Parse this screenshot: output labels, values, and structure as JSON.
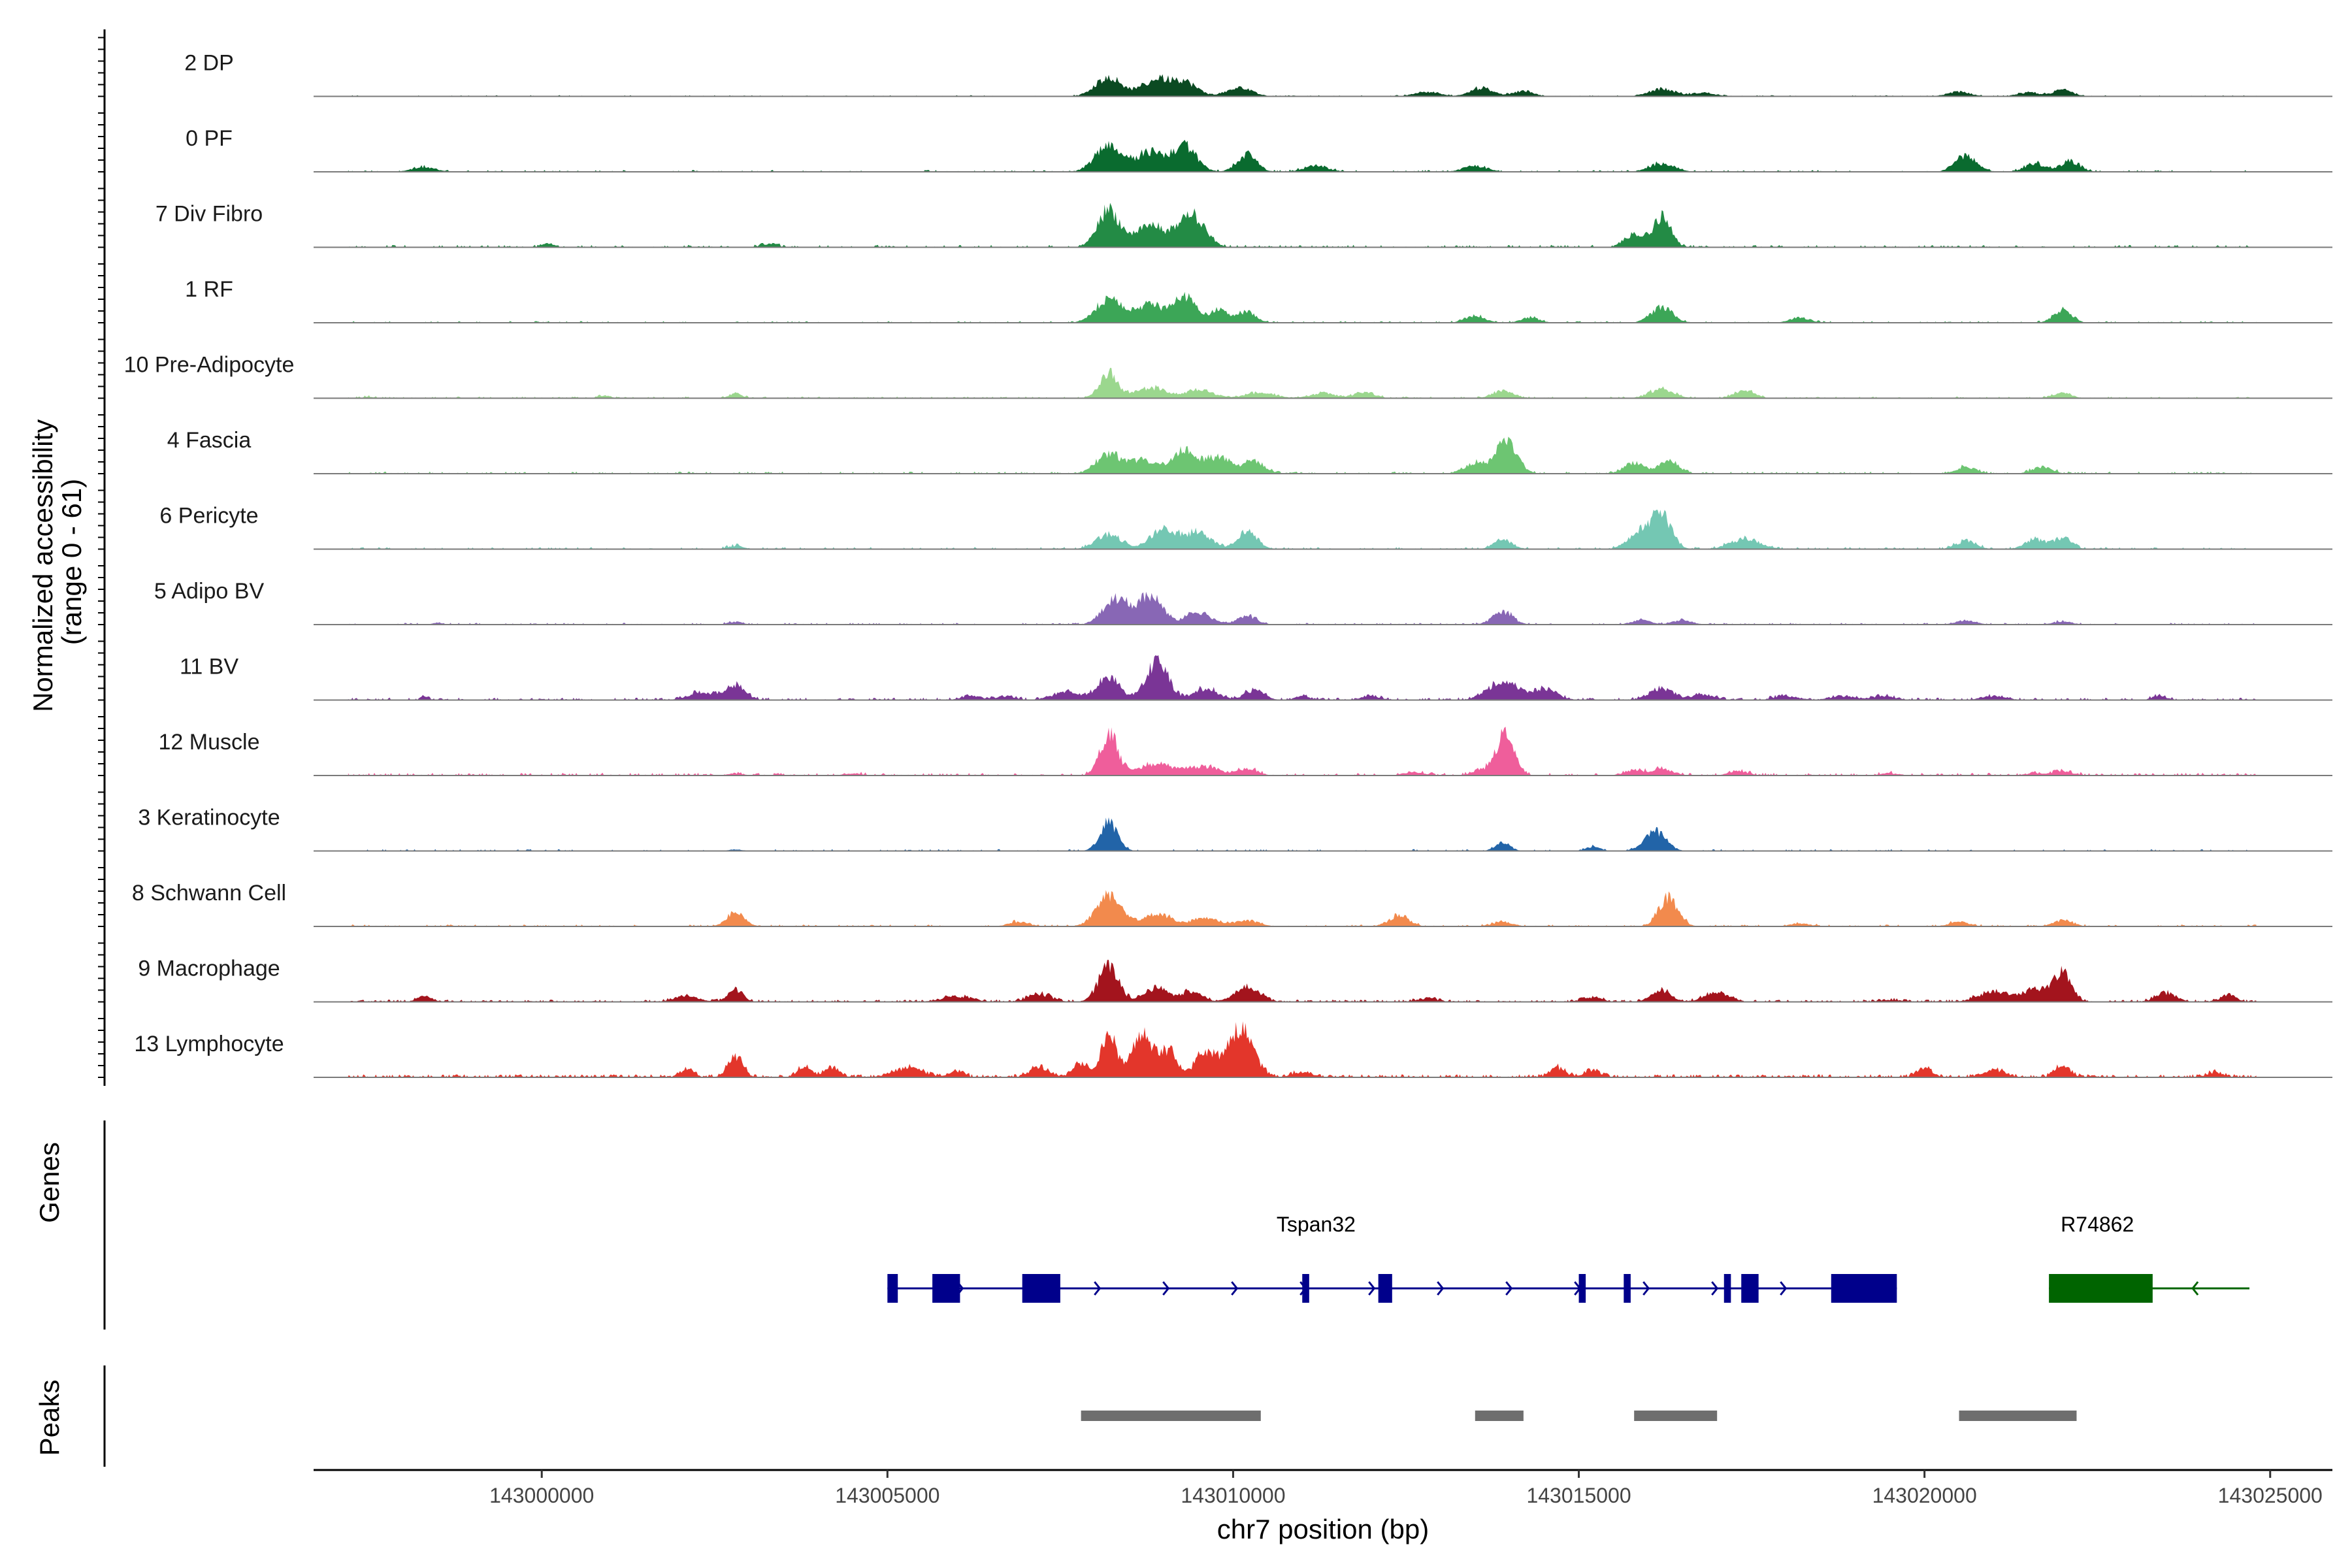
{
  "chart_data": {
    "type": "area",
    "title": "",
    "xlabel": "chr7 position (bp)",
    "ylabel": [
      "Normalized accessibility",
      "(range 0 - 61)"
    ],
    "xlim": [
      142996700,
      143025900
    ],
    "ylim": [
      0,
      61
    ],
    "x_ticks": [
      143000000,
      143005000,
      143010000,
      143015000,
      143020000,
      143025000
    ],
    "x_tick_labels": [
      "143000000",
      "143005000",
      "143010000",
      "143015000",
      "143020000",
      "143025000"
    ],
    "tracks": [
      {
        "name": "2 DP",
        "color": "#0b4a22",
        "scale": 0.4,
        "density": 0.28,
        "peaks": [
          [
            143008200,
            1.0,
            260
          ],
          [
            143008900,
            0.85,
            300
          ],
          [
            143009300,
            0.7,
            260
          ],
          [
            143010100,
            0.45,
            250
          ],
          [
            143012800,
            0.25,
            250
          ],
          [
            143013600,
            0.45,
            230
          ],
          [
            143014200,
            0.3,
            200
          ],
          [
            143016200,
            0.4,
            260
          ],
          [
            143016800,
            0.2,
            220
          ],
          [
            143020500,
            0.25,
            230
          ],
          [
            143021500,
            0.2,
            220
          ],
          [
            143022000,
            0.35,
            200
          ]
        ]
      },
      {
        "name": "0 PF",
        "color": "#0a6b2f",
        "scale": 0.6,
        "density": 0.28,
        "peaks": [
          [
            142998300,
            0.15,
            250
          ],
          [
            143008200,
            1.0,
            260
          ],
          [
            143008800,
            0.7,
            280
          ],
          [
            143009300,
            0.9,
            240
          ],
          [
            143010200,
            0.6,
            200
          ],
          [
            143011200,
            0.2,
            250
          ],
          [
            143013500,
            0.2,
            250
          ],
          [
            143016200,
            0.3,
            250
          ],
          [
            143020600,
            0.55,
            220
          ],
          [
            143021600,
            0.3,
            200
          ],
          [
            143022100,
            0.35,
            200
          ]
        ]
      },
      {
        "name": "7 Div Fibro",
        "color": "#238b45",
        "scale": 0.8,
        "density": 0.3,
        "peaks": [
          [
            143000100,
            0.1,
            120
          ],
          [
            143008200,
            1.0,
            220
          ],
          [
            143008800,
            0.6,
            300
          ],
          [
            143009400,
            0.85,
            260
          ],
          [
            143016200,
            0.8,
            180
          ],
          [
            143015800,
            0.35,
            200
          ],
          [
            143003300,
            0.08,
            150
          ]
        ]
      },
      {
        "name": "1 RF",
        "color": "#3ca657",
        "scale": 0.55,
        "density": 0.25,
        "peaks": [
          [
            143008200,
            0.95,
            260
          ],
          [
            143008800,
            0.7,
            280
          ],
          [
            143009300,
            1.0,
            220
          ],
          [
            143009800,
            0.5,
            200
          ],
          [
            143010200,
            0.4,
            180
          ],
          [
            143013500,
            0.25,
            200
          ],
          [
            143014300,
            0.2,
            180
          ],
          [
            143016200,
            0.6,
            220
          ],
          [
            143018200,
            0.2,
            200
          ],
          [
            143022000,
            0.5,
            180
          ]
        ]
      },
      {
        "name": "10 Pre-Adipocyte",
        "color": "#9bd78e",
        "scale": 0.55,
        "density": 0.35,
        "peaks": [
          [
            142997500,
            0.05,
            120
          ],
          [
            143000900,
            0.1,
            120
          ],
          [
            143002800,
            0.2,
            120
          ],
          [
            143008200,
            1.0,
            180
          ],
          [
            143008800,
            0.4,
            300
          ],
          [
            143009500,
            0.3,
            300
          ],
          [
            143010400,
            0.2,
            300
          ],
          [
            143011300,
            0.2,
            250
          ],
          [
            143011900,
            0.25,
            200
          ],
          [
            143013900,
            0.3,
            200
          ],
          [
            143016200,
            0.35,
            250
          ],
          [
            143017400,
            0.3,
            200
          ],
          [
            143022000,
            0.2,
            180
          ]
        ]
      },
      {
        "name": "4 Fascia",
        "color": "#6dc572",
        "scale": 0.7,
        "density": 0.3,
        "peaks": [
          [
            143008200,
            0.6,
            250
          ],
          [
            143008700,
            0.4,
            280
          ],
          [
            143009300,
            0.7,
            260
          ],
          [
            143009800,
            0.5,
            250
          ],
          [
            143010300,
            0.4,
            200
          ],
          [
            143013500,
            0.3,
            220
          ],
          [
            143013950,
            1.0,
            220
          ],
          [
            143015800,
            0.35,
            200
          ],
          [
            143016300,
            0.4,
            200
          ],
          [
            143020600,
            0.2,
            200
          ],
          [
            143021700,
            0.2,
            200
          ]
        ]
      },
      {
        "name": "6 Pericyte",
        "color": "#74c7b3",
        "scale": 0.7,
        "density": 0.3,
        "peaks": [
          [
            143002800,
            0.1,
            150
          ],
          [
            143008200,
            0.45,
            250
          ],
          [
            143009000,
            0.6,
            280
          ],
          [
            143009500,
            0.5,
            260
          ],
          [
            143010200,
            0.55,
            200
          ],
          [
            143013900,
            0.3,
            180
          ],
          [
            143015900,
            0.5,
            250
          ],
          [
            143016200,
            1.0,
            200
          ],
          [
            143017400,
            0.3,
            300
          ],
          [
            143020600,
            0.25,
            200
          ],
          [
            143021600,
            0.3,
            200
          ],
          [
            143022000,
            0.35,
            180
          ]
        ]
      },
      {
        "name": "5 Adipo BV",
        "color": "#8867b5",
        "scale": 0.6,
        "density": 0.28,
        "peaks": [
          [
            142998500,
            0.05,
            120
          ],
          [
            143002800,
            0.1,
            150
          ],
          [
            143008300,
            0.9,
            250
          ],
          [
            143008800,
            1.0,
            250
          ],
          [
            143009500,
            0.45,
            250
          ],
          [
            143010200,
            0.3,
            200
          ],
          [
            143013900,
            0.45,
            200
          ],
          [
            143015900,
            0.15,
            200
          ],
          [
            143016500,
            0.15,
            200
          ],
          [
            143020600,
            0.15,
            200
          ],
          [
            143022000,
            0.1,
            200
          ]
        ]
      },
      {
        "name": "11 BV",
        "color": "#7a3596",
        "scale": 0.8,
        "density": 0.45,
        "peaks": [
          [
            142998300,
            0.1,
            80
          ],
          [
            143002300,
            0.2,
            250
          ],
          [
            143002800,
            0.4,
            200
          ],
          [
            143006200,
            0.1,
            200
          ],
          [
            143006700,
            0.1,
            200
          ],
          [
            143007600,
            0.2,
            300
          ],
          [
            143008200,
            0.6,
            220
          ],
          [
            143008900,
            1.0,
            220
          ],
          [
            143009600,
            0.3,
            250
          ],
          [
            143010300,
            0.25,
            200
          ],
          [
            143011000,
            0.1,
            150
          ],
          [
            143012000,
            0.1,
            200
          ],
          [
            143013900,
            0.5,
            300
          ],
          [
            143014500,
            0.3,
            250
          ],
          [
            143016200,
            0.3,
            250
          ],
          [
            143016800,
            0.15,
            200
          ],
          [
            143018000,
            0.1,
            250
          ],
          [
            143018800,
            0.1,
            250
          ],
          [
            143019400,
            0.1,
            250
          ],
          [
            143021000,
            0.1,
            250
          ],
          [
            143023400,
            0.1,
            150
          ]
        ]
      },
      {
        "name": "12 Muscle",
        "color": "#ef5e9b",
        "scale": 0.9,
        "density": 0.35,
        "peaks": [
          [
            143002800,
            0.05,
            150
          ],
          [
            143004500,
            0.05,
            200
          ],
          [
            143008200,
            0.95,
            180
          ],
          [
            143008900,
            0.25,
            400
          ],
          [
            143009600,
            0.2,
            300
          ],
          [
            143010200,
            0.15,
            200
          ],
          [
            143012600,
            0.08,
            200
          ],
          [
            143013700,
            0.15,
            250
          ],
          [
            143013950,
            1.0,
            170
          ],
          [
            143015800,
            0.12,
            200
          ],
          [
            143016200,
            0.15,
            200
          ],
          [
            143017300,
            0.1,
            200
          ],
          [
            143019500,
            0.05,
            200
          ],
          [
            143021600,
            0.05,
            200
          ],
          [
            143022000,
            0.1,
            200
          ]
        ]
      },
      {
        "name": "3 Keratinocyte",
        "color": "#2264a8",
        "scale": 0.6,
        "density": 0.18,
        "peaks": [
          [
            143008200,
            1.0,
            180
          ],
          [
            143013900,
            0.3,
            150
          ],
          [
            143016100,
            0.7,
            220
          ],
          [
            143015200,
            0.15,
            150
          ],
          [
            143002800,
            0.05,
            150
          ]
        ]
      },
      {
        "name": "8 Schwann Cell",
        "color": "#f28a4d",
        "scale": 0.65,
        "density": 0.3,
        "peaks": [
          [
            143002800,
            0.45,
            180
          ],
          [
            143006900,
            0.15,
            200
          ],
          [
            143008200,
            1.0,
            250
          ],
          [
            143008900,
            0.4,
            300
          ],
          [
            143009600,
            0.3,
            250
          ],
          [
            143010200,
            0.2,
            250
          ],
          [
            143012400,
            0.35,
            200
          ],
          [
            143013900,
            0.15,
            200
          ],
          [
            143016300,
            0.9,
            200
          ],
          [
            143018200,
            0.1,
            200
          ],
          [
            143020500,
            0.15,
            200
          ],
          [
            143022000,
            0.2,
            200
          ]
        ]
      },
      {
        "name": "9 Macrophage",
        "color": "#a3141d",
        "scale": 0.75,
        "density": 0.55,
        "peaks": [
          [
            142998300,
            0.15,
            150
          ],
          [
            143002100,
            0.15,
            250
          ],
          [
            143002800,
            0.35,
            150
          ],
          [
            143006000,
            0.15,
            300
          ],
          [
            143007200,
            0.2,
            250
          ],
          [
            143008200,
            1.0,
            200
          ],
          [
            143008900,
            0.4,
            250
          ],
          [
            143009400,
            0.3,
            200
          ],
          [
            143010200,
            0.4,
            250
          ],
          [
            143012800,
            0.1,
            200
          ],
          [
            143015200,
            0.12,
            200
          ],
          [
            143016200,
            0.3,
            200
          ],
          [
            143017000,
            0.25,
            250
          ],
          [
            143019500,
            0.05,
            200
          ],
          [
            143021000,
            0.3,
            300
          ],
          [
            143021600,
            0.35,
            250
          ],
          [
            143022000,
            0.8,
            180
          ],
          [
            143023500,
            0.25,
            200
          ],
          [
            143024400,
            0.2,
            150
          ]
        ]
      },
      {
        "name": "13 Lymphocyte",
        "color": "#e3362b",
        "scale": 1.0,
        "density": 0.6,
        "peaks": [
          [
            143002100,
            0.15,
            150
          ],
          [
            143002800,
            0.45,
            150
          ],
          [
            143003800,
            0.2,
            150
          ],
          [
            143004200,
            0.2,
            150
          ],
          [
            143005300,
            0.2,
            300
          ],
          [
            143006000,
            0.12,
            150
          ],
          [
            143007200,
            0.2,
            200
          ],
          [
            143007800,
            0.3,
            150
          ],
          [
            143008200,
            1.0,
            140
          ],
          [
            143008700,
            0.85,
            250
          ],
          [
            143009100,
            0.5,
            150
          ],
          [
            143009600,
            0.55,
            200
          ],
          [
            143010100,
            1.0,
            260
          ],
          [
            143011000,
            0.1,
            200
          ],
          [
            143014700,
            0.2,
            150
          ],
          [
            143015200,
            0.15,
            150
          ],
          [
            143020000,
            0.2,
            150
          ],
          [
            143021000,
            0.15,
            200
          ],
          [
            143022000,
            0.25,
            150
          ],
          [
            143024200,
            0.1,
            150
          ]
        ]
      }
    ],
    "genes_panel": {
      "label": "Genes",
      "genes": [
        {
          "name": "Tspan32",
          "strand": "+",
          "color": "#00008b",
          "start": 143005000,
          "end": 143019600,
          "exons": [
            [
              143005000,
              143005150
            ],
            [
              143005650,
              143006050
            ],
            [
              143006950,
              143007500
            ],
            [
              143011000,
              143011100
            ],
            [
              143012100,
              143012300
            ],
            [
              143015000,
              143015100
            ],
            [
              143015650,
              143015750
            ],
            [
              143017100,
              143017200
            ],
            [
              143017350,
              143017600
            ],
            [
              143018650,
              143019600
            ]
          ]
        },
        {
          "name": "R74862",
          "strand": "-",
          "color": "#006400",
          "start": 143021800,
          "end": 143024700,
          "exons": [
            [
              143021800,
              143023300
            ]
          ]
        }
      ]
    },
    "peaks_panel": {
      "label": "Peaks",
      "color": "#6e6e6e",
      "regions": [
        [
          143007800,
          143010400
        ],
        [
          143013500,
          143014200
        ],
        [
          143015800,
          143017000
        ],
        [
          143020500,
          143022200
        ]
      ]
    }
  }
}
